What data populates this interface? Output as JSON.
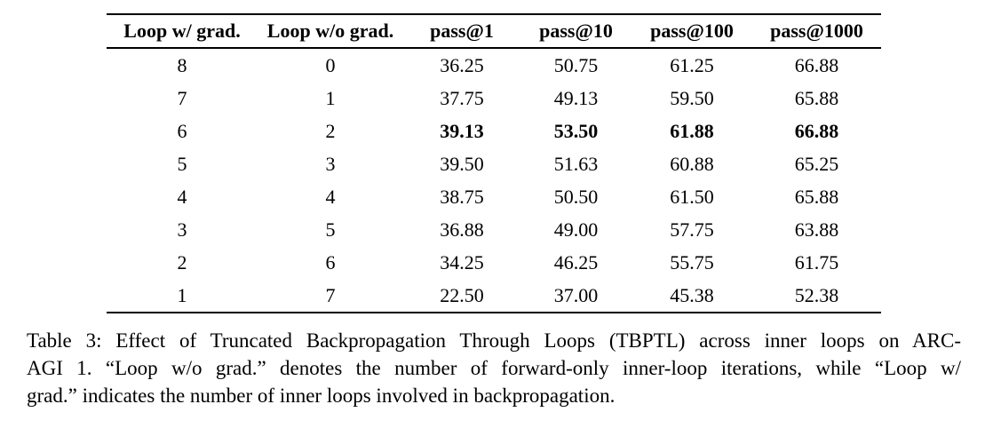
{
  "colors": {
    "background": "#ffffff",
    "text": "#000000",
    "rule": "#000000"
  },
  "table": {
    "columns": [
      "Loop w/ grad.",
      "Loop w/o grad.",
      "pass@1",
      "pass@10",
      "pass@100",
      "pass@1000"
    ],
    "rows": [
      {
        "cells": [
          "8",
          "0",
          "36.25",
          "50.75",
          "61.25",
          "66.88"
        ],
        "bold": []
      },
      {
        "cells": [
          "7",
          "1",
          "37.75",
          "49.13",
          "59.50",
          "65.88"
        ],
        "bold": []
      },
      {
        "cells": [
          "6",
          "2",
          "39.13",
          "53.50",
          "61.88",
          "66.88"
        ],
        "bold": [
          2,
          3,
          4,
          5
        ]
      },
      {
        "cells": [
          "5",
          "3",
          "39.50",
          "51.63",
          "60.88",
          "65.25"
        ],
        "bold": []
      },
      {
        "cells": [
          "4",
          "4",
          "38.75",
          "50.50",
          "61.50",
          "65.88"
        ],
        "bold": []
      },
      {
        "cells": [
          "3",
          "5",
          "36.88",
          "49.00",
          "57.75",
          "63.88"
        ],
        "bold": []
      },
      {
        "cells": [
          "2",
          "6",
          "34.25",
          "46.25",
          "55.75",
          "61.75"
        ],
        "bold": []
      },
      {
        "cells": [
          "1",
          "7",
          "22.50",
          "37.00",
          "45.38",
          "52.38"
        ],
        "bold": []
      }
    ]
  },
  "caption": {
    "label": "Table 3:",
    "lines": [
      "Table 3: Effect of Truncated Backpropagation Through Loops (TBPTL) across inner loops on ARC-",
      "AGI 1. “Loop w/o grad.” denotes the number of forward-only inner-loop iterations, while “Loop w/",
      "grad.” indicates the number of inner loops involved in backpropagation."
    ],
    "full_text": "Table 3: Effect of Truncated Backpropagation Through Loops (TBPTL) across inner loops on ARC-AGI 1. “Loop w/o grad.” denotes the number of forward-only inner-loop iterations, while “Loop w/ grad.” indicates the number of inner loops involved in backpropagation."
  }
}
